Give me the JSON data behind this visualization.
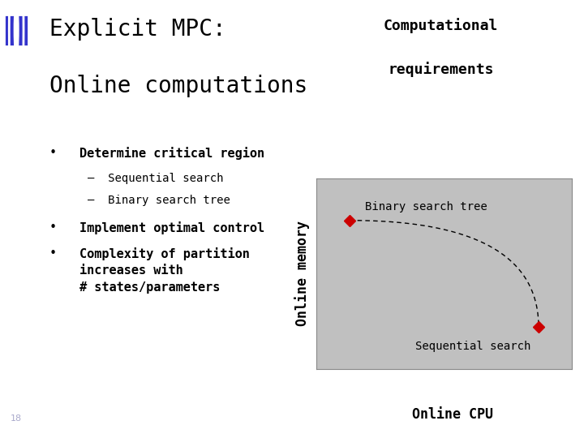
{
  "title_line1": "Explicit MPC:",
  "title_line2": "Online computations",
  "background_color": "#ffffff",
  "sidebar_color": "#3333cc",
  "chart_title_line1": "Computational",
  "chart_title_line2": "requirements",
  "chart_bg": "#c0c0c0",
  "chart_xlabel": "Online CPU",
  "chart_ylabel": "Online memory",
  "point_binary": [
    0.13,
    0.78
  ],
  "point_sequential": [
    0.87,
    0.22
  ],
  "point_color": "#cc0000",
  "label_binary": "Binary search tree",
  "label_sequential": "Sequential search",
  "curve_color": "#000000",
  "page_number": "18",
  "title_fontsize": 20,
  "body_fontsize": 11,
  "sub_fontsize": 10,
  "chart_label_fontsize": 10,
  "chart_title_fontsize": 13,
  "chart_axis_fontsize": 12
}
